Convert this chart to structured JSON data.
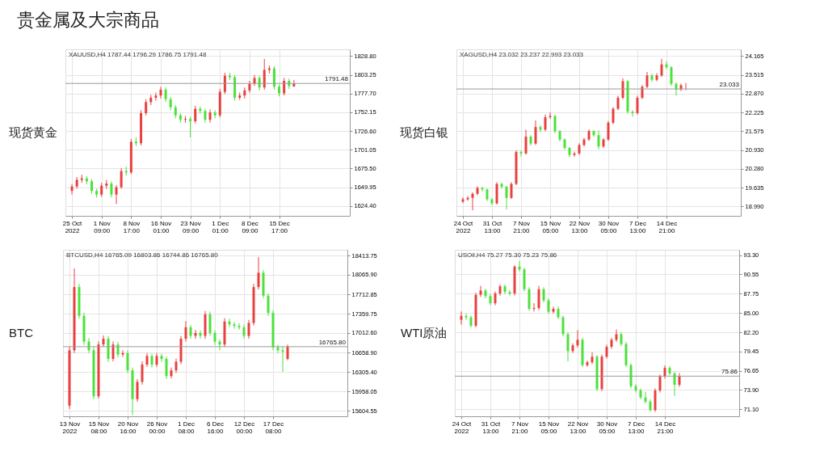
{
  "chart_data": [
    {
      "type": "other",
      "title": "贵金属及大宗商品"
    },
    {
      "type": "candlestick",
      "title": "现货黄金",
      "annotations": [
        "XAUUSD,H4 1787.44 1796.29 1786.75 1791.48"
      ],
      "categories": [
        "25 Oct 2022",
        null,
        null,
        null,
        null,
        null,
        "1 Nov 09:00",
        null,
        null,
        null,
        null,
        null,
        "8 Nov 17:00",
        null,
        null,
        null,
        null,
        null,
        "16 Nov 01:00",
        null,
        null,
        null,
        null,
        null,
        "23 Nov 09:00",
        null,
        null,
        null,
        null,
        null,
        "1 Dec 01:00",
        null,
        null,
        null,
        null,
        null,
        "8 Dec 09:00",
        null,
        null,
        null,
        null,
        null,
        "15 Dec 17:00",
        null,
        null,
        null,
        null,
        null,
        null,
        null,
        null,
        null,
        null,
        null,
        null,
        null
      ],
      "ohlc": [
        [
          1645,
          1654,
          1640,
          1651
        ],
        [
          1651,
          1664,
          1648,
          1660
        ],
        [
          1660,
          1667,
          1656,
          1662
        ],
        [
          1662,
          1665,
          1654,
          1658
        ],
        [
          1658,
          1661,
          1641,
          1645
        ],
        [
          1645,
          1648,
          1636,
          1640
        ],
        [
          1640,
          1656,
          1637,
          1652
        ],
        [
          1652,
          1660,
          1648,
          1655
        ],
        [
          1655,
          1658,
          1636,
          1640
        ],
        [
          1640,
          1653,
          1627,
          1650
        ],
        [
          1650,
          1676,
          1648,
          1672
        ],
        [
          1672,
          1678,
          1666,
          1670
        ],
        [
          1670,
          1716,
          1668,
          1712
        ],
        [
          1712,
          1718,
          1706,
          1710
        ],
        [
          1710,
          1755,
          1707,
          1751
        ],
        [
          1751,
          1770,
          1748,
          1766
        ],
        [
          1766,
          1776,
          1762,
          1772
        ],
        [
          1772,
          1779,
          1768,
          1775
        ],
        [
          1775,
          1787,
          1771,
          1783
        ],
        [
          1783,
          1786,
          1766,
          1770
        ],
        [
          1770,
          1773,
          1755,
          1759
        ],
        [
          1759,
          1762,
          1744,
          1748
        ],
        [
          1748,
          1751,
          1738,
          1742
        ],
        [
          1742,
          1747,
          1738,
          1743
        ],
        [
          1743,
          1746,
          1718,
          1740
        ],
        [
          1740,
          1761,
          1737,
          1757
        ],
        [
          1757,
          1760,
          1750,
          1754
        ],
        [
          1754,
          1757,
          1738,
          1742
        ],
        [
          1742,
          1756,
          1738,
          1752
        ],
        [
          1752,
          1755,
          1744,
          1748
        ],
        [
          1748,
          1784,
          1745,
          1780
        ],
        [
          1780,
          1806,
          1777,
          1802
        ],
        [
          1802,
          1806,
          1796,
          1800
        ],
        [
          1800,
          1803,
          1768,
          1772
        ],
        [
          1772,
          1779,
          1769,
          1775
        ],
        [
          1775,
          1786,
          1771,
          1782
        ],
        [
          1782,
          1795,
          1779,
          1791
        ],
        [
          1791,
          1803,
          1788,
          1799
        ],
        [
          1799,
          1802,
          1782,
          1786
        ],
        [
          1786,
          1825,
          1783,
          1810
        ],
        [
          1810,
          1816,
          1805,
          1812
        ],
        [
          1812,
          1815,
          1783,
          1787
        ],
        [
          1787,
          1790,
          1774,
          1778
        ],
        [
          1778,
          1799,
          1775,
          1795
        ],
        [
          1795,
          1798,
          1784,
          1788
        ],
        [
          1787.44,
          1796.29,
          1786.75,
          1791.48
        ],
        null,
        null,
        null,
        null,
        null,
        null,
        null,
        null,
        null,
        null
      ],
      "colors": [
        "#e8403f",
        "#e8403f",
        "#e8403f",
        "#4be23b",
        "#4be23b",
        "#4be23b",
        "#e8403f",
        "#e8403f",
        "#4be23b",
        "#e8403f",
        "#e8403f",
        "#4be23b",
        "#e8403f",
        "#4be23b",
        "#e8403f",
        "#e8403f",
        "#e8403f",
        "#e8403f",
        "#e8403f",
        "#4be23b",
        "#4be23b",
        "#4be23b",
        "#4be23b",
        "#e8403f",
        "#4be23b",
        "#e8403f",
        "#4be23b",
        "#4be23b",
        "#e8403f",
        "#4be23b",
        "#e8403f",
        "#e8403f",
        "#4be23b",
        "#4be23b",
        "#e8403f",
        "#e8403f",
        "#e8403f",
        "#e8403f",
        "#4be23b",
        "#e8403f",
        "#e8403f",
        "#4be23b",
        "#4be23b",
        "#e8403f",
        "#4be23b",
        "#e8403f",
        null,
        null,
        null,
        null,
        null,
        null,
        null,
        null,
        null,
        null
      ],
      "ylim": [
        1611,
        1838
      ],
      "yticks": [
        {
          "value": 1828.8,
          "label": "1828.80"
        },
        {
          "value": 1803.25,
          "label": "1803.25"
        },
        {
          "value": 1777.7,
          "label": "1777.70"
        },
        {
          "value": 1752.15,
          "label": "1752.15"
        },
        {
          "value": 1726.6,
          "label": "1726.60"
        },
        {
          "value": 1701.05,
          "label": "1701.05"
        },
        {
          "value": 1675.5,
          "label": "1675.50"
        },
        {
          "value": 1649.95,
          "label": "1649.95"
        },
        {
          "value": 1624.4,
          "label": "1624.40"
        }
      ],
      "ref_lines": [
        {
          "axis": "y",
          "value": 1791.48,
          "label": "1791.48"
        }
      ],
      "grid": true
    },
    {
      "type": "candlestick",
      "title": "现货白银",
      "annotations": [
        "XAGUSD,H4 23.032 23.237 22.993 23.033"
      ],
      "categories": [
        "24 Oct 2022",
        null,
        null,
        null,
        null,
        null,
        "31 Oct 13:00",
        null,
        null,
        null,
        null,
        null,
        "7 Nov 21:00",
        null,
        null,
        null,
        null,
        null,
        "15 Nov 05:00",
        null,
        null,
        null,
        null,
        null,
        "22 Nov 13:00",
        null,
        null,
        null,
        null,
        null,
        "30 Nov 05:00",
        null,
        null,
        null,
        null,
        null,
        "7 Dec 13:00",
        null,
        null,
        null,
        null,
        null,
        "14 Dec 21:00",
        null,
        null,
        null,
        null,
        null,
        null,
        null,
        null,
        null,
        null,
        null,
        null,
        null,
        null
      ],
      "ohlc": [
        [
          19.15,
          19.3,
          19.1,
          19.23
        ],
        [
          19.23,
          19.34,
          19.18,
          19.28
        ],
        [
          19.28,
          19.47,
          18.85,
          19.42
        ],
        [
          19.42,
          19.68,
          19.37,
          19.62
        ],
        [
          19.62,
          19.66,
          19.5,
          19.57
        ],
        [
          19.57,
          19.6,
          19.17,
          19.23
        ],
        [
          19.23,
          19.27,
          19.03,
          19.09
        ],
        [
          19.09,
          19.82,
          19.05,
          19.76
        ],
        [
          19.76,
          19.8,
          19.6,
          19.66
        ],
        [
          19.66,
          19.7,
          18.88,
          19.28
        ],
        [
          19.28,
          19.82,
          19.24,
          19.76
        ],
        [
          19.76,
          20.92,
          19.72,
          20.86
        ],
        [
          20.86,
          20.92,
          20.7,
          20.81
        ],
        [
          20.81,
          21.63,
          20.77,
          21.39
        ],
        [
          21.39,
          21.44,
          21.08,
          21.15
        ],
        [
          21.15,
          21.95,
          21.1,
          21.72
        ],
        [
          21.72,
          21.78,
          21.55,
          21.63
        ],
        [
          21.63,
          22.15,
          21.58,
          22.06
        ],
        [
          22.06,
          22.22,
          22.0,
          22.1
        ],
        [
          22.1,
          22.14,
          21.5,
          21.58
        ],
        [
          21.58,
          21.62,
          21.22,
          21.29
        ],
        [
          21.29,
          21.33,
          20.93,
          21.0
        ],
        [
          21.0,
          21.04,
          20.68,
          20.76
        ],
        [
          20.76,
          20.87,
          20.7,
          20.81
        ],
        [
          20.81,
          21.16,
          20.76,
          21.1
        ],
        [
          21.1,
          21.35,
          21.05,
          21.29
        ],
        [
          21.29,
          21.64,
          21.24,
          21.58
        ],
        [
          21.58,
          21.62,
          21.38,
          21.44
        ],
        [
          21.44,
          21.6,
          20.95,
          21.05
        ],
        [
          21.05,
          21.34,
          21.0,
          21.29
        ],
        [
          21.29,
          21.93,
          21.24,
          21.87
        ],
        [
          21.87,
          22.41,
          21.82,
          22.35
        ],
        [
          22.35,
          22.8,
          22.3,
          22.73
        ],
        [
          22.73,
          23.4,
          22.68,
          23.3
        ],
        [
          23.3,
          23.34,
          22.18,
          22.25
        ],
        [
          22.25,
          22.3,
          22.08,
          22.2
        ],
        [
          22.2,
          22.8,
          22.15,
          22.73
        ],
        [
          22.73,
          23.17,
          22.68,
          23.11
        ],
        [
          23.11,
          23.62,
          23.06,
          23.5
        ],
        [
          23.5,
          23.56,
          23.28,
          23.35
        ],
        [
          23.35,
          23.58,
          23.3,
          23.5
        ],
        [
          23.5,
          24.07,
          23.45,
          23.88
        ],
        [
          23.88,
          23.98,
          23.72,
          23.78
        ],
        [
          23.78,
          23.82,
          23.14,
          23.21
        ],
        [
          23.21,
          23.26,
          22.8,
          23.02
        ],
        [
          23.02,
          23.22,
          22.96,
          23.16
        ],
        [
          23.032,
          23.237,
          22.993,
          23.033
        ],
        null,
        null,
        null,
        null,
        null,
        null,
        null,
        null,
        null,
        null
      ],
      "colors": [
        "#e8403f",
        "#e8403f",
        "#e8403f",
        "#e8403f",
        "#4be23b",
        "#4be23b",
        "#4be23b",
        "#e8403f",
        "#4be23b",
        "#4be23b",
        "#e8403f",
        "#e8403f",
        "#4be23b",
        "#e8403f",
        "#4be23b",
        "#e8403f",
        "#4be23b",
        "#e8403f",
        "#e8403f",
        "#4be23b",
        "#4be23b",
        "#4be23b",
        "#4be23b",
        "#e8403f",
        "#e8403f",
        "#e8403f",
        "#e8403f",
        "#4be23b",
        "#4be23b",
        "#e8403f",
        "#e8403f",
        "#e8403f",
        "#e8403f",
        "#e8403f",
        "#4be23b",
        "#4be23b",
        "#e8403f",
        "#e8403f",
        "#e8403f",
        "#4be23b",
        "#e8403f",
        "#e8403f",
        "#4be23b",
        "#4be23b",
        "#4be23b",
        "#e8403f",
        "#e8403f",
        null,
        null,
        null,
        null,
        null,
        null,
        null,
        null,
        null,
        null
      ],
      "ylim": [
        18.66,
        24.4
      ],
      "yticks": [
        {
          "value": 24.165,
          "label": "24.165"
        },
        {
          "value": 23.515,
          "label": "23.515"
        },
        {
          "value": 22.87,
          "label": "22.870"
        },
        {
          "value": 22.225,
          "label": "22.225"
        },
        {
          "value": 21.575,
          "label": "21.575"
        },
        {
          "value": 20.93,
          "label": "20.930"
        },
        {
          "value": 20.28,
          "label": "20.280"
        },
        {
          "value": 19.635,
          "label": "19.635"
        },
        {
          "value": 18.99,
          "label": "18.990"
        }
      ],
      "ref_lines": [
        {
          "axis": "y",
          "value": 23.033,
          "label": "23.033"
        }
      ],
      "grid": true
    },
    {
      "type": "candlestick",
      "title": "BTC",
      "annotations": [
        "BTCUSD,H4 16765.09 16803.86 16744.86 16765.80"
      ],
      "categories": [
        "13 Nov 2022",
        null,
        null,
        null,
        null,
        null,
        "15 Nov 08:00",
        null,
        null,
        null,
        null,
        null,
        "20 Nov 16:00",
        null,
        null,
        null,
        null,
        null,
        "26 Nov 00:00",
        null,
        null,
        null,
        null,
        null,
        "1 Dec 08:00",
        null,
        null,
        null,
        null,
        null,
        "6 Dec 16:00",
        null,
        null,
        null,
        null,
        null,
        "12 Dec 00:00",
        null,
        null,
        null,
        null,
        null,
        "17 Dec 08:00",
        null,
        null,
        null,
        null,
        null,
        null,
        null,
        null,
        null,
        null,
        null,
        null,
        null,
        null
      ],
      "ohlc": [
        [
          15700,
          16760,
          15640,
          16700
        ],
        [
          16700,
          18180,
          16650,
          17843
        ],
        [
          17843,
          17900,
          17270,
          17324
        ],
        [
          17324,
          17380,
          16800,
          16857
        ],
        [
          16857,
          16920,
          16650,
          16700
        ],
        [
          16700,
          16760,
          15820,
          15870
        ],
        [
          15870,
          16860,
          15830,
          16805
        ],
        [
          16805,
          16970,
          16760,
          16909
        ],
        [
          16909,
          16960,
          16490,
          16545
        ],
        [
          16545,
          16860,
          16500,
          16805
        ],
        [
          16805,
          16850,
          16570,
          16623
        ],
        [
          16623,
          16700,
          16580,
          16649
        ],
        [
          16649,
          16700,
          16290,
          16338
        ],
        [
          16338,
          16390,
          15530,
          15819
        ],
        [
          15819,
          16180,
          15770,
          16130
        ],
        [
          16130,
          16500,
          16080,
          16442
        ],
        [
          16442,
          16650,
          16400,
          16597
        ],
        [
          16597,
          16640,
          16390,
          16442
        ],
        [
          16442,
          16650,
          16400,
          16597
        ],
        [
          16597,
          16640,
          16490,
          16545
        ],
        [
          16545,
          16590,
          16180,
          16234
        ],
        [
          16234,
          16390,
          16190,
          16338
        ],
        [
          16338,
          16550,
          16290,
          16493
        ],
        [
          16493,
          16960,
          16450,
          16909
        ],
        [
          16909,
          17230,
          16860,
          17116
        ],
        [
          17116,
          17160,
          16910,
          16961
        ],
        [
          16961,
          17070,
          16910,
          17013
        ],
        [
          17013,
          17060,
          16910,
          16961
        ],
        [
          16961,
          17410,
          16910,
          17350
        ],
        [
          17350,
          17400,
          16960,
          17013
        ],
        [
          17013,
          17060,
          16800,
          16857
        ],
        [
          16857,
          16900,
          16700,
          16805
        ],
        [
          16805,
          17280,
          16760,
          17220
        ],
        [
          17220,
          17270,
          17120,
          17168
        ],
        [
          17168,
          17210,
          17090,
          17142
        ],
        [
          17142,
          17190,
          17070,
          17116
        ],
        [
          17116,
          17160,
          16910,
          16961
        ],
        [
          16961,
          17250,
          16910,
          17194
        ],
        [
          17194,
          17900,
          17150,
          17843
        ],
        [
          17843,
          18388,
          17800,
          18102
        ],
        [
          18102,
          18150,
          17640,
          17687
        ],
        [
          17687,
          17730,
          17320,
          17376
        ],
        [
          17376,
          17420,
          16700,
          16753
        ],
        [
          16753,
          16800,
          16650,
          16700
        ],
        [
          16700,
          16760,
          16312,
          16675
        ],
        [
          16545,
          16803.86,
          16520,
          16765.8
        ],
        null,
        null,
        null,
        null,
        null,
        null,
        null,
        null,
        null,
        null,
        null
      ],
      "colors": [
        "#e8403f",
        "#e8403f",
        "#4be23b",
        "#4be23b",
        "#4be23b",
        "#4be23b",
        "#e8403f",
        "#e8403f",
        "#4be23b",
        "#e8403f",
        "#4be23b",
        "#e8403f",
        "#4be23b",
        "#4be23b",
        "#e8403f",
        "#e8403f",
        "#e8403f",
        "#4be23b",
        "#e8403f",
        "#4be23b",
        "#4be23b",
        "#e8403f",
        "#e8403f",
        "#e8403f",
        "#e8403f",
        "#4be23b",
        "#e8403f",
        "#4be23b",
        "#e8403f",
        "#4be23b",
        "#4be23b",
        "#4be23b",
        "#e8403f",
        "#4be23b",
        "#4be23b",
        "#4be23b",
        "#4be23b",
        "#e8403f",
        "#e8403f",
        "#e8403f",
        "#4be23b",
        "#4be23b",
        "#4be23b",
        "#4be23b",
        "#4be23b",
        "#e8403f",
        null,
        null,
        null,
        null,
        null,
        null,
        null,
        null,
        null,
        null,
        null
      ],
      "ylim": [
        15507,
        18517
      ],
      "yticks": [
        {
          "value": 18413.75,
          "label": "18413.75"
        },
        {
          "value": 18065.9,
          "label": "18065.90"
        },
        {
          "value": 17712.85,
          "label": "17712.85"
        },
        {
          "value": 17359.75,
          "label": "17359.75"
        },
        {
          "value": 17012.6,
          "label": "17012.60"
        },
        {
          "value": 16658.9,
          "label": "16658.90"
        },
        {
          "value": 16305.4,
          "label": "16305.40"
        },
        {
          "value": 15958.05,
          "label": "15958.05"
        },
        {
          "value": 15604.55,
          "label": "15604.55"
        }
      ],
      "ref_lines": [
        {
          "axis": "y",
          "value": 16765.8,
          "label": "16765.80"
        }
      ],
      "grid": true
    },
    {
      "type": "candlestick",
      "title": "WTI原油",
      "annotations": [
        "USOil,H4 75.27 75.30 75.23 75.86"
      ],
      "categories": [
        "24 Oct 2022",
        null,
        null,
        null,
        null,
        null,
        "31 Oct 13:00",
        null,
        null,
        null,
        null,
        null,
        "7 Nov 21:00",
        null,
        null,
        null,
        null,
        null,
        "15 Nov 05:00",
        null,
        null,
        null,
        null,
        null,
        "22 Nov 13:00",
        null,
        null,
        null,
        null,
        null,
        "30 Nov 05:00",
        null,
        null,
        null,
        null,
        null,
        "7 Dec 13:00",
        null,
        null,
        null,
        null,
        null,
        "14 Dec 21:00",
        null,
        null,
        null,
        null,
        null,
        null,
        null,
        null,
        null,
        null,
        null,
        null,
        null,
        null
      ],
      "ohlc": [
        [
          84.0,
          85.2,
          83.3,
          84.56
        ],
        [
          84.56,
          84.9,
          84.0,
          84.36
        ],
        [
          84.36,
          84.6,
          82.9,
          83.14
        ],
        [
          83.14,
          87.9,
          82.9,
          87.61
        ],
        [
          87.61,
          88.9,
          87.3,
          88.22
        ],
        [
          88.22,
          88.5,
          87.1,
          87.41
        ],
        [
          87.41,
          87.7,
          86.1,
          86.39
        ],
        [
          86.39,
          88.1,
          86.1,
          87.81
        ],
        [
          87.81,
          89.1,
          87.5,
          88.83
        ],
        [
          88.83,
          89.1,
          87.7,
          88.02
        ],
        [
          88.02,
          88.3,
          87.5,
          87.81
        ],
        [
          87.81,
          91.9,
          87.5,
          91.67
        ],
        [
          91.67,
          92.5,
          91.0,
          91.27
        ],
        [
          91.27,
          91.5,
          88.1,
          88.42
        ],
        [
          88.42,
          88.7,
          85.3,
          85.58
        ],
        [
          85.58,
          86.4,
          85.2,
          85.7
        ],
        [
          85.7,
          88.9,
          85.4,
          88.42
        ],
        [
          88.42,
          88.7,
          86.5,
          86.8
        ],
        [
          86.8,
          87.1,
          84.9,
          85.17
        ],
        [
          85.17,
          85.9,
          84.9,
          85.58
        ],
        [
          85.58,
          85.9,
          84.1,
          84.36
        ],
        [
          84.36,
          84.6,
          81.6,
          81.92
        ],
        [
          81.92,
          82.2,
          78.0,
          79.49
        ],
        [
          79.49,
          80.6,
          79.2,
          80.3
        ],
        [
          80.3,
          82.5,
          80.0,
          81.11
        ],
        [
          81.11,
          81.4,
          77.2,
          77.45
        ],
        [
          77.45,
          78.1,
          77.2,
          77.86
        ],
        [
          77.86,
          79.3,
          77.6,
          78.67
        ],
        [
          78.67,
          78.9,
          73.7,
          74.0
        ],
        [
          74.0,
          79.0,
          73.7,
          78.67
        ],
        [
          78.67,
          80.4,
          78.4,
          80.1
        ],
        [
          80.1,
          81.4,
          79.8,
          81.11
        ],
        [
          81.11,
          82.6,
          80.8,
          81.92
        ],
        [
          81.92,
          82.2,
          80.2,
          80.5
        ],
        [
          80.5,
          80.8,
          77.2,
          77.45
        ],
        [
          77.45,
          77.7,
          74.1,
          74.41
        ],
        [
          74.41,
          74.7,
          73.5,
          73.8
        ],
        [
          73.8,
          74.1,
          72.5,
          72.78
        ],
        [
          72.78,
          73.6,
          71.9,
          72.17
        ],
        [
          72.17,
          72.5,
          70.7,
          70.95
        ],
        [
          70.95,
          74.1,
          70.7,
          73.8
        ],
        [
          73.8,
          76.1,
          73.5,
          75.83
        ],
        [
          75.83,
          77.4,
          75.5,
          77.05
        ],
        [
          77.05,
          77.3,
          76.0,
          76.24
        ],
        [
          76.24,
          76.5,
          73.0,
          74.61
        ],
        [
          74.61,
          76.3,
          74.3,
          75.86
        ],
        null,
        null,
        null,
        null,
        null,
        null,
        null,
        null,
        null,
        null,
        null
      ],
      "colors": [
        "#e8403f",
        "#4be23b",
        "#4be23b",
        "#e8403f",
        "#e8403f",
        "#4be23b",
        "#4be23b",
        "#e8403f",
        "#e8403f",
        "#4be23b",
        "#4be23b",
        "#e8403f",
        "#4be23b",
        "#4be23b",
        "#4be23b",
        "#e8403f",
        "#e8403f",
        "#4be23b",
        "#4be23b",
        "#e8403f",
        "#4be23b",
        "#4be23b",
        "#4be23b",
        "#e8403f",
        "#e8403f",
        "#4be23b",
        "#e8403f",
        "#e8403f",
        "#4be23b",
        "#e8403f",
        "#e8403f",
        "#e8403f",
        "#e8403f",
        "#4be23b",
        "#4be23b",
        "#4be23b",
        "#4be23b",
        "#4be23b",
        "#4be23b",
        "#4be23b",
        "#e8403f",
        "#e8403f",
        "#e8403f",
        "#4be23b",
        "#4be23b",
        "#e8403f",
        null,
        null,
        null,
        null,
        null,
        null,
        null,
        null,
        null,
        null,
        null
      ],
      "ylim": [
        70.06,
        94.11
      ],
      "yticks": [
        {
          "value": 93.3,
          "label": "93.30"
        },
        {
          "value": 90.55,
          "label": "90.55"
        },
        {
          "value": 87.75,
          "label": "87.75"
        },
        {
          "value": 85.0,
          "label": "85.00"
        },
        {
          "value": 82.2,
          "label": "82.20"
        },
        {
          "value": 79.45,
          "label": "79.45"
        },
        {
          "value": 76.65,
          "label": "76.65"
        },
        {
          "value": 73.9,
          "label": "73.90"
        },
        {
          "value": 71.1,
          "label": "71.10"
        }
      ],
      "ref_lines": [
        {
          "axis": "y",
          "value": 75.86,
          "label": "75.86"
        }
      ],
      "grid": true
    }
  ]
}
